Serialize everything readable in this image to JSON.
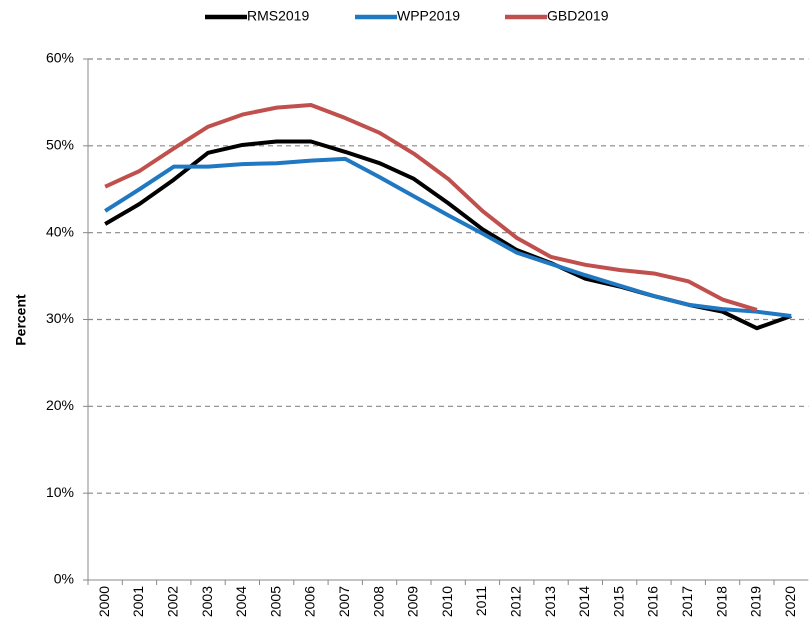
{
  "chart_data": {
    "type": "line",
    "y_label": "Percent",
    "categories": [
      "2000",
      "2001",
      "2002",
      "2003",
      "2004",
      "2005",
      "2006",
      "2007",
      "2008",
      "2009",
      "2010",
      "2011",
      "2012",
      "2013",
      "2014",
      "2015",
      "2016",
      "2017",
      "2018",
      "2019",
      "2020"
    ],
    "series": [
      {
        "name": "RMS2019",
        "color": "#000000",
        "values": [
          41.0,
          43.3,
          46.1,
          49.2,
          50.1,
          50.5,
          50.5,
          49.3,
          48.0,
          46.2,
          43.4,
          40.4,
          38.0,
          36.5,
          34.7,
          33.8,
          32.7,
          31.7,
          30.9,
          29.0,
          30.4
        ]
      },
      {
        "name": "WPP2019",
        "color": "#1f78c1",
        "values": [
          42.5,
          45.0,
          47.6,
          47.6,
          47.9,
          48.0,
          48.3,
          48.5,
          46.4,
          44.2,
          42.0,
          39.9,
          37.7,
          36.4,
          35.1,
          33.9,
          32.7,
          31.7,
          31.2,
          30.9,
          30.4
        ]
      },
      {
        "name": "GBD2019",
        "color": "#c0504d",
        "values": [
          45.3,
          47.1,
          49.7,
          52.2,
          53.6,
          54.4,
          54.7,
          53.2,
          51.5,
          49.1,
          46.2,
          42.5,
          39.4,
          37.2,
          36.3,
          35.7,
          35.3,
          34.4,
          32.3,
          31.1,
          null
        ]
      }
    ],
    "ylim": [
      0,
      60
    ],
    "yticks": [
      {
        "value": 0,
        "label": "0%"
      },
      {
        "value": 10,
        "label": "10%"
      },
      {
        "value": 20,
        "label": "20%"
      },
      {
        "value": 30,
        "label": "30%"
      },
      {
        "value": 40,
        "label": "40%"
      },
      {
        "value": 50,
        "label": "50%"
      },
      {
        "value": 60,
        "label": "60%"
      }
    ],
    "grid": true,
    "legend": "top"
  }
}
